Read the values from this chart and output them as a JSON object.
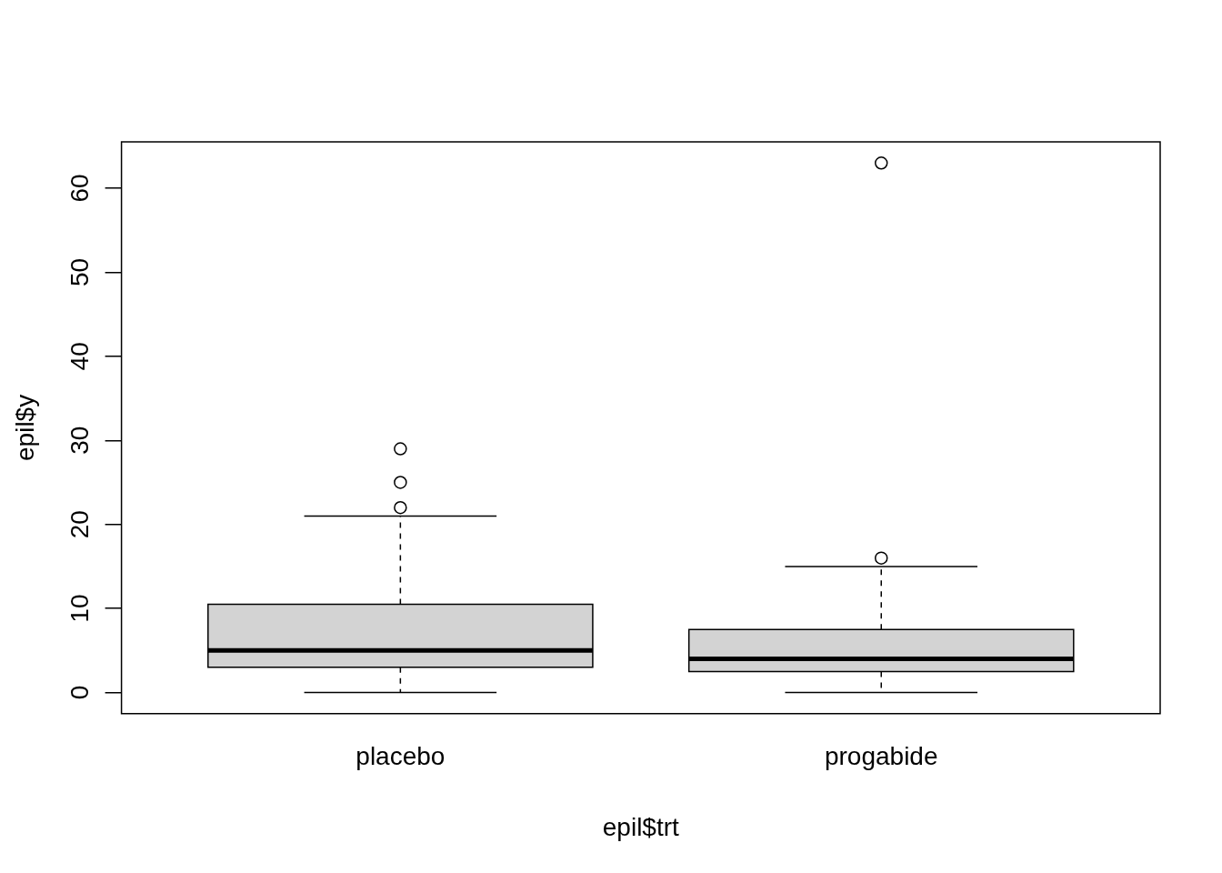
{
  "chart_data": {
    "type": "box",
    "xlabel": "epil$trt",
    "ylabel": "epil$y",
    "categories": [
      "placebo",
      "progabide"
    ],
    "color": "#d3d3d3",
    "boxes": [
      {
        "low": 0,
        "q1": 3,
        "median": 5,
        "q3": 10.5,
        "high": 21,
        "outliers": [
          22,
          25,
          29
        ]
      },
      {
        "low": 0,
        "q1": 2.5,
        "median": 4,
        "q3": 7.5,
        "high": 15,
        "outliers": [
          16,
          63
        ]
      }
    ],
    "ylim": [
      -2.52,
      65.52
    ],
    "yticks": [
      0,
      10,
      20,
      30,
      40,
      50,
      60
    ],
    "grid": false,
    "legend": false,
    "marker": "circle"
  }
}
